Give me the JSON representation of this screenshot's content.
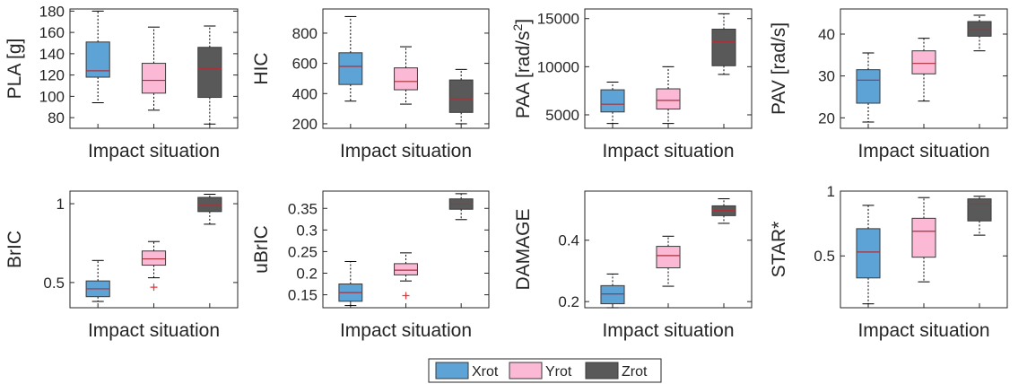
{
  "colors": {
    "Xrot": "#5da3d6",
    "Yrot": "#fbb9d5",
    "Zrot": "#595959",
    "median": "#a8323a",
    "outlier": "#e8343a",
    "axis": "#262626"
  },
  "legend": {
    "placement": "bottom-center",
    "items": [
      {
        "label": "Xrot",
        "color_key": "Xrot"
      },
      {
        "label": "Yrot",
        "color_key": "Yrot"
      },
      {
        "label": "Zrot",
        "color_key": "Zrot"
      }
    ]
  },
  "chart_data": [
    {
      "type": "boxplot",
      "ylabel": "PLA [g]",
      "ylabel_sup": "",
      "xlabel": "Impact situation",
      "ylim": [
        70,
        182
      ],
      "yticks": [
        80,
        100,
        120,
        140,
        160,
        180
      ],
      "series": [
        {
          "name": "Xrot",
          "whisker_low": 94,
          "q1": 118,
          "median": 124,
          "q3": 151,
          "whisker_high": 180,
          "outliers": []
        },
        {
          "name": "Yrot",
          "whisker_low": 87,
          "q1": 103,
          "median": 115,
          "q3": 131,
          "whisker_high": 165,
          "outliers": []
        },
        {
          "name": "Zrot",
          "whisker_low": 74,
          "q1": 99,
          "median": 126,
          "q3": 146,
          "whisker_high": 166,
          "outliers": []
        }
      ]
    },
    {
      "type": "boxplot",
      "ylabel": "HIC",
      "ylabel_sup": "",
      "xlabel": "Impact situation",
      "ylim": [
        170,
        960
      ],
      "yticks": [
        200,
        400,
        600,
        800
      ],
      "series": [
        {
          "name": "Xrot",
          "whisker_low": 350,
          "q1": 460,
          "median": 580,
          "q3": 670,
          "whisker_high": 910,
          "outliers": []
        },
        {
          "name": "Yrot",
          "whisker_low": 330,
          "q1": 425,
          "median": 480,
          "q3": 570,
          "whisker_high": 710,
          "outliers": []
        },
        {
          "name": "Zrot",
          "whisker_low": 200,
          "q1": 275,
          "median": 365,
          "q3": 490,
          "whisker_high": 560,
          "outliers": []
        }
      ]
    },
    {
      "type": "boxplot",
      "ylabel": "PAA [rad/s",
      "ylabel_sup": "2",
      "ylabel_end": "]",
      "xlabel": "Impact situation",
      "ylim": [
        3600,
        16000
      ],
      "yticks": [
        5000,
        10000,
        15000
      ],
      "series": [
        {
          "name": "Xrot",
          "whisker_low": 4100,
          "q1": 5300,
          "median": 6100,
          "q3": 7600,
          "whisker_high": 8400,
          "outliers": []
        },
        {
          "name": "Yrot",
          "whisker_low": 4100,
          "q1": 5600,
          "median": 6500,
          "q3": 7700,
          "whisker_high": 10000,
          "outliers": []
        },
        {
          "name": "Zrot",
          "whisker_low": 9200,
          "q1": 10100,
          "median": 12600,
          "q3": 13900,
          "whisker_high": 15500,
          "outliers": []
        }
      ]
    },
    {
      "type": "boxplot",
      "ylabel": "PAV [rad/s]",
      "ylabel_sup": "",
      "xlabel": "Impact situation",
      "ylim": [
        17.5,
        46
      ],
      "yticks": [
        20,
        30,
        40
      ],
      "series": [
        {
          "name": "Xrot",
          "whisker_low": 19,
          "q1": 23.5,
          "median": 29,
          "q3": 31.5,
          "whisker_high": 35.5,
          "outliers": []
        },
        {
          "name": "Yrot",
          "whisker_low": 24,
          "q1": 30.5,
          "median": 33,
          "q3": 36,
          "whisker_high": 39,
          "outliers": []
        },
        {
          "name": "Zrot",
          "whisker_low": 36,
          "q1": 39.5,
          "median": 41,
          "q3": 43,
          "whisker_high": 44.5,
          "outliers": []
        }
      ]
    },
    {
      "type": "boxplot",
      "ylabel": "BrIC",
      "ylabel_sup": "",
      "xlabel": "Impact situation",
      "ylim": [
        0.34,
        1.08
      ],
      "yticks": [
        0.5,
        1
      ],
      "yticklabels": [
        "0.5",
        "1"
      ],
      "series": [
        {
          "name": "Xrot",
          "whisker_low": 0.38,
          "q1": 0.41,
          "median": 0.46,
          "q3": 0.51,
          "whisker_high": 0.64,
          "outliers": []
        },
        {
          "name": "Yrot",
          "whisker_low": 0.53,
          "q1": 0.61,
          "median": 0.65,
          "q3": 0.7,
          "whisker_high": 0.76,
          "outliers": [
            0.47
          ]
        },
        {
          "name": "Zrot",
          "whisker_low": 0.87,
          "q1": 0.95,
          "median": 0.99,
          "q3": 1.04,
          "whisker_high": 1.06,
          "outliers": []
        }
      ]
    },
    {
      "type": "boxplot",
      "ylabel": "uBrIC",
      "ylabel_sup": "",
      "xlabel": "Impact situation",
      "ylim": [
        0.12,
        0.39
      ],
      "yticks": [
        0.15,
        0.2,
        0.25,
        0.3,
        0.35
      ],
      "yticklabels": [
        "0.15",
        "0.2",
        "0.25",
        "0.3",
        "0.35"
      ],
      "series": [
        {
          "name": "Xrot",
          "whisker_low": 0.125,
          "q1": 0.135,
          "median": 0.155,
          "q3": 0.175,
          "whisker_high": 0.227,
          "outliers": []
        },
        {
          "name": "Yrot",
          "whisker_low": 0.182,
          "q1": 0.196,
          "median": 0.207,
          "q3": 0.222,
          "whisker_high": 0.247,
          "outliers": [
            0.148
          ]
        },
        {
          "name": "Zrot",
          "whisker_low": 0.324,
          "q1": 0.348,
          "median": 0.36,
          "q3": 0.372,
          "whisker_high": 0.384,
          "outliers": []
        }
      ]
    },
    {
      "type": "boxplot",
      "ylabel": "DAMAGE",
      "ylabel_sup": "",
      "xlabel": "Impact situation",
      "ylim": [
        0.18,
        0.56
      ],
      "yticks": [
        0.2,
        0.4
      ],
      "yticklabels": [
        "0.2",
        "0.4"
      ],
      "series": [
        {
          "name": "Xrot",
          "whisker_low": 0.18,
          "q1": 0.193,
          "median": 0.225,
          "q3": 0.252,
          "whisker_high": 0.29,
          "outliers": []
        },
        {
          "name": "Yrot",
          "whisker_low": 0.25,
          "q1": 0.31,
          "median": 0.35,
          "q3": 0.38,
          "whisker_high": 0.413,
          "outliers": []
        },
        {
          "name": "Zrot",
          "whisker_low": 0.455,
          "q1": 0.48,
          "median": 0.497,
          "q3": 0.512,
          "whisker_high": 0.535,
          "outliers": []
        }
      ]
    },
    {
      "type": "boxplot",
      "ylabel": "STAR*",
      "ylabel_sup": "",
      "xlabel": "Impact situation",
      "ylim": [
        0.1,
        1.0
      ],
      "yticks": [
        0.5,
        1
      ],
      "yticklabels": [
        "0.5",
        "1"
      ],
      "series": [
        {
          "name": "Xrot",
          "whisker_low": 0.13,
          "q1": 0.33,
          "median": 0.53,
          "q3": 0.71,
          "whisker_high": 0.89,
          "outliers": []
        },
        {
          "name": "Yrot",
          "whisker_low": 0.3,
          "q1": 0.49,
          "median": 0.69,
          "q3": 0.79,
          "whisker_high": 0.95,
          "outliers": []
        },
        {
          "name": "Zrot",
          "whisker_low": 0.66,
          "q1": 0.77,
          "median": 0.9,
          "q3": 0.94,
          "whisker_high": 0.96,
          "outliers": []
        }
      ]
    }
  ]
}
